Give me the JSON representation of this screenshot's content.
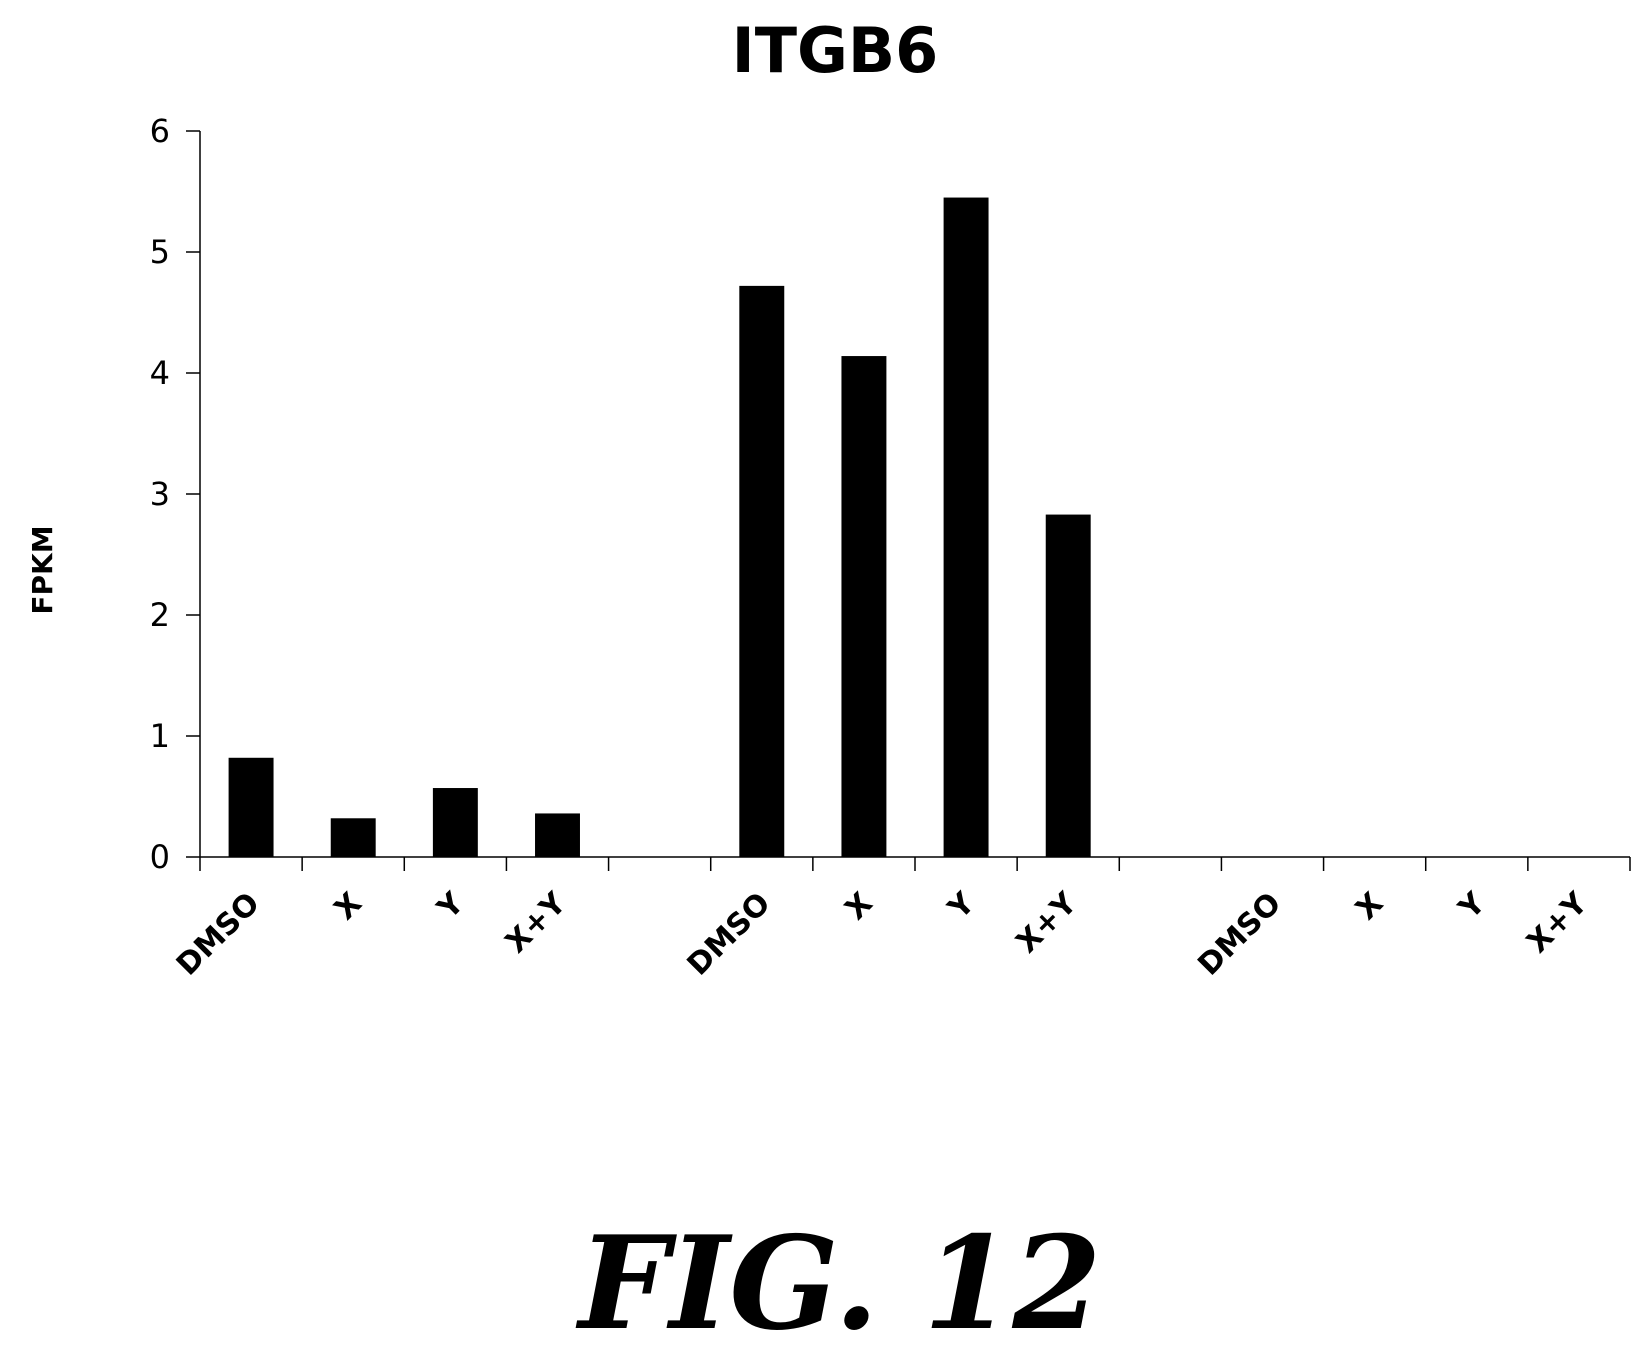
{
  "chart_data": {
    "type": "bar",
    "title": "ITGB6",
    "ylabel": "FPKM",
    "xlabel": "",
    "ylim": [
      0,
      6
    ],
    "yticks": [
      0,
      1,
      2,
      3,
      4,
      5,
      6
    ],
    "grid": false,
    "legend": "none",
    "bar_color": "#000000",
    "categories": [
      "DMSO",
      "X",
      "Y",
      "X+Y",
      "",
      "DMSO",
      "X",
      "Y",
      "X+Y",
      "",
      "DMSO",
      "X",
      "Y",
      "X+Y"
    ],
    "values": [
      0.82,
      0.32,
      0.57,
      0.36,
      null,
      4.72,
      4.14,
      5.45,
      2.83,
      null,
      0,
      0,
      0,
      0
    ]
  },
  "figure": {
    "caption": "FIG. 12"
  }
}
